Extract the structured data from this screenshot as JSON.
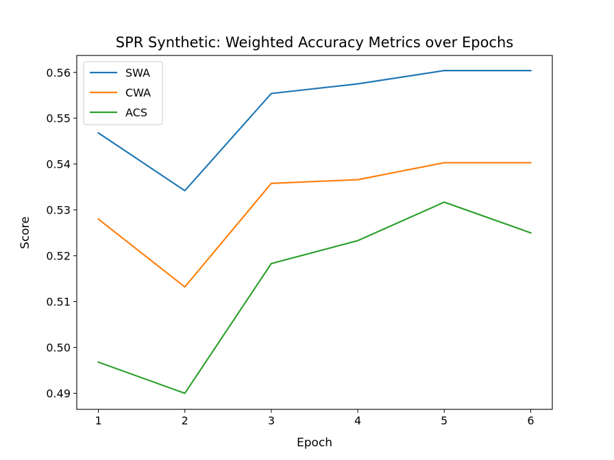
{
  "chart_data": {
    "type": "line",
    "title": "SPR Synthetic: Weighted Accuracy Metrics over Epochs",
    "xlabel": "Epoch",
    "ylabel": "Score",
    "x": [
      1,
      2,
      3,
      4,
      5,
      6
    ],
    "xlim": [
      0.75,
      6.25
    ],
    "ylim": [
      0.4865,
      0.5637
    ],
    "x_ticks": [
      "1",
      "2",
      "3",
      "4",
      "5",
      "6"
    ],
    "y_ticks": [
      "0.49",
      "0.50",
      "0.51",
      "0.52",
      "0.53",
      "0.54",
      "0.55",
      "0.56"
    ],
    "grid": false,
    "legend_position": "top-left",
    "series": [
      {
        "name": "SWA",
        "color": "#1f77b4",
        "values": [
          0.5468,
          0.5342,
          0.5554,
          0.5575,
          0.5604,
          0.5604
        ]
      },
      {
        "name": "CWA",
        "color": "#ff7f0e",
        "values": [
          0.528,
          0.5132,
          0.5358,
          0.5366,
          0.5403,
          0.5403
        ]
      },
      {
        "name": "ACS",
        "color": "#2ca02c",
        "values": [
          0.4968,
          0.49,
          0.5183,
          0.5233,
          0.5317,
          0.525
        ]
      }
    ]
  }
}
